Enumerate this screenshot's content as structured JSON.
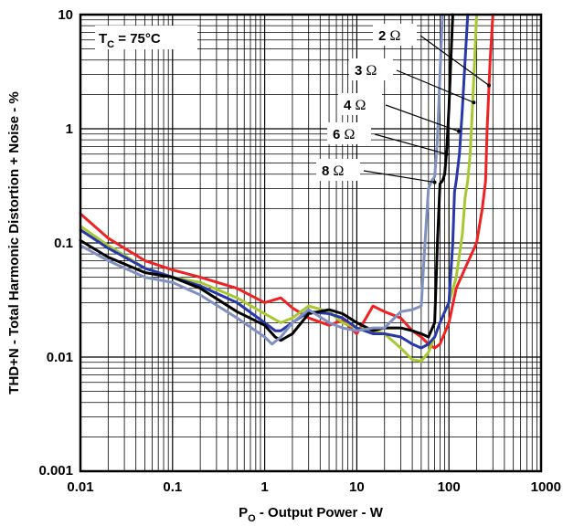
{
  "chart_data": {
    "type": "line",
    "title": "",
    "xlabel": {
      "main": "P",
      "sub": "O",
      "rest": " - Output Power - W"
    },
    "ylabel": "THD+N - Total Harmonic Distortion + Noise - %",
    "xscale": "log",
    "yscale": "log",
    "xlim": [
      0.01,
      1000
    ],
    "ylim": [
      0.001,
      10
    ],
    "grid": true,
    "x_ticks": [
      "0.01",
      "0.1",
      "1",
      "10",
      "100",
      "1000"
    ],
    "y_ticks": [
      "0.001",
      "0.01",
      "0.1",
      "1",
      "10"
    ],
    "condition": {
      "main": "T",
      "sub": "C",
      "rest": " = 75°C"
    },
    "series": [
      {
        "name": "2 Ω",
        "color": "#ee2222",
        "points": [
          [
            0.01,
            0.18
          ],
          [
            0.02,
            0.11
          ],
          [
            0.05,
            0.07
          ],
          [
            0.1,
            0.058
          ],
          [
            0.2,
            0.05
          ],
          [
            0.5,
            0.04
          ],
          [
            1,
            0.03
          ],
          [
            1.5,
            0.033
          ],
          [
            2,
            0.027
          ],
          [
            3,
            0.022
          ],
          [
            5,
            0.019
          ],
          [
            7,
            0.021
          ],
          [
            10,
            0.016
          ],
          [
            15,
            0.028
          ],
          [
            20,
            0.025
          ],
          [
            30,
            0.022
          ],
          [
            40,
            0.017
          ],
          [
            50,
            0.015
          ],
          [
            60,
            0.013
          ],
          [
            70,
            0.012
          ],
          [
            80,
            0.013
          ],
          [
            100,
            0.02
          ],
          [
            120,
            0.04
          ],
          [
            150,
            0.06
          ],
          [
            200,
            0.1
          ],
          [
            230,
            0.2
          ],
          [
            250,
            0.35
          ],
          [
            260,
            1
          ],
          [
            280,
            4
          ],
          [
            300,
            10
          ]
        ]
      },
      {
        "name": "3 Ω",
        "color": "#a8c832",
        "points": [
          [
            0.01,
            0.14
          ],
          [
            0.02,
            0.095
          ],
          [
            0.05,
            0.06
          ],
          [
            0.1,
            0.05
          ],
          [
            0.2,
            0.045
          ],
          [
            0.5,
            0.033
          ],
          [
            1,
            0.024
          ],
          [
            1.5,
            0.02
          ],
          [
            2,
            0.022
          ],
          [
            3,
            0.028
          ],
          [
            5,
            0.025
          ],
          [
            7,
            0.02
          ],
          [
            10,
            0.018
          ],
          [
            15,
            0.017
          ],
          [
            20,
            0.016
          ],
          [
            30,
            0.012
          ],
          [
            40,
            0.0095
          ],
          [
            50,
            0.0092
          ],
          [
            60,
            0.011
          ],
          [
            70,
            0.015
          ],
          [
            80,
            0.02
          ],
          [
            100,
            0.03
          ],
          [
            120,
            0.05
          ],
          [
            140,
            0.12
          ],
          [
            150,
            0.25
          ],
          [
            160,
            0.35
          ],
          [
            170,
            0.6
          ],
          [
            180,
            1.5
          ],
          [
            190,
            4
          ],
          [
            200,
            10
          ]
        ]
      },
      {
        "name": "4 Ω",
        "color": "#2838a8",
        "points": [
          [
            0.01,
            0.13
          ],
          [
            0.02,
            0.09
          ],
          [
            0.05,
            0.06
          ],
          [
            0.1,
            0.05
          ],
          [
            0.2,
            0.042
          ],
          [
            0.5,
            0.03
          ],
          [
            1,
            0.02
          ],
          [
            1.3,
            0.017
          ],
          [
            1.5,
            0.017
          ],
          [
            2,
            0.02
          ],
          [
            3,
            0.025
          ],
          [
            5,
            0.024
          ],
          [
            7,
            0.022
          ],
          [
            10,
            0.018
          ],
          [
            15,
            0.016
          ],
          [
            20,
            0.016
          ],
          [
            30,
            0.015
          ],
          [
            40,
            0.013
          ],
          [
            50,
            0.012
          ],
          [
            60,
            0.013
          ],
          [
            70,
            0.015
          ],
          [
            80,
            0.02
          ],
          [
            90,
            0.025
          ],
          [
            100,
            0.03
          ],
          [
            110,
            0.1
          ],
          [
            115,
            0.28
          ],
          [
            120,
            0.35
          ],
          [
            130,
            0.6
          ],
          [
            140,
            1.5
          ],
          [
            150,
            4
          ],
          [
            160,
            10
          ]
        ]
      },
      {
        "name": "6 Ω",
        "color": "#000000",
        "points": [
          [
            0.01,
            0.105
          ],
          [
            0.02,
            0.075
          ],
          [
            0.05,
            0.055
          ],
          [
            0.1,
            0.05
          ],
          [
            0.2,
            0.04
          ],
          [
            0.5,
            0.025
          ],
          [
            1,
            0.019
          ],
          [
            1.3,
            0.015
          ],
          [
            1.5,
            0.014
          ],
          [
            2,
            0.016
          ],
          [
            3,
            0.024
          ],
          [
            5,
            0.026
          ],
          [
            7,
            0.024
          ],
          [
            10,
            0.02
          ],
          [
            15,
            0.017
          ],
          [
            20,
            0.018
          ],
          [
            30,
            0.018
          ],
          [
            40,
            0.017
          ],
          [
            50,
            0.016
          ],
          [
            60,
            0.015
          ],
          [
            70,
            0.02
          ],
          [
            75,
            0.1
          ],
          [
            80,
            0.33
          ],
          [
            85,
            0.35
          ],
          [
            90,
            0.4
          ],
          [
            95,
            0.7
          ],
          [
            100,
            1.5
          ],
          [
            105,
            4
          ],
          [
            110,
            10
          ]
        ]
      },
      {
        "name": "8 Ω",
        "color": "#8090c0",
        "points": [
          [
            0.01,
            0.095
          ],
          [
            0.02,
            0.07
          ],
          [
            0.05,
            0.05
          ],
          [
            0.1,
            0.045
          ],
          [
            0.2,
            0.035
          ],
          [
            0.5,
            0.022
          ],
          [
            1,
            0.015
          ],
          [
            1.2,
            0.013
          ],
          [
            1.5,
            0.015
          ],
          [
            2,
            0.02
          ],
          [
            3,
            0.026
          ],
          [
            5,
            0.02
          ],
          [
            7,
            0.018
          ],
          [
            10,
            0.017
          ],
          [
            15,
            0.018
          ],
          [
            20,
            0.018
          ],
          [
            30,
            0.025
          ],
          [
            40,
            0.026
          ],
          [
            50,
            0.028
          ],
          [
            55,
            0.1
          ],
          [
            60,
            0.3
          ],
          [
            65,
            0.35
          ],
          [
            70,
            0.38
          ],
          [
            75,
            0.8
          ],
          [
            80,
            3
          ],
          [
            85,
            10
          ]
        ]
      }
    ],
    "annotations": [
      {
        "label": "2 Ω",
        "series": "2 Ω",
        "at": [
          272,
          2.4
        ]
      },
      {
        "label": "3 Ω",
        "series": "3 Ω",
        "at": [
          186,
          1.7
        ]
      },
      {
        "label": "4 Ω",
        "series": "4 Ω",
        "at": [
          128,
          0.95
        ]
      },
      {
        "label": "6 Ω",
        "series": "6 Ω",
        "at": [
          94,
          0.6
        ]
      },
      {
        "label": "8 Ω",
        "series": "8 Ω",
        "at": [
          70,
          0.34
        ]
      }
    ]
  }
}
